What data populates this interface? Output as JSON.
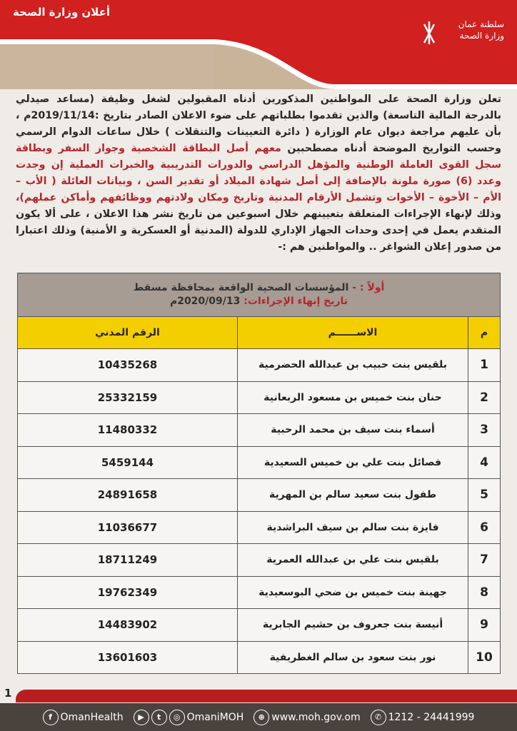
{
  "header": {
    "title": "أعلان وزارة الصحة",
    "logo_text": "سلطنة عمان وزارة الصحة",
    "brand_red": "#c8201f"
  },
  "intro": {
    "part1": "تعلن وزارة الصحة على المواطنين المذكورين أدناه المقبولين لشغل وظيفة (مساعد صيدلي بالدرجة المالية التاسعة) والذين تقدموا بطلباتهم على ضوء الاعلان الصادر بتاريخ :2019/11/14م ، بأن عليهم مراجعة ديوان عام الوزارة ( دائرة التعيينات والتنقلات ) خلال ساعات الدوام الرسمي وحسب التواريخ الموضحة أدناه مصطحبين",
    "part2": "معهم أصل البطاقة الشخصية وجواز السفر وبطاقة سجل القوى العاملة الوطنية والمؤهل الدراسي والدورات التدريبية والخبرات العملية إن وجدت وعدد (6) صورة ملونة بالإضافة إلى أصل شهادة الميلاد أو تقدير السن ، وبيانات العائلة ( الأب – الأم – الأخوة – الأخوات وتشمل الأرقام المدنية وتاريخ ومكان ولادتهم ووظائفهم وأماكن عملهم)،",
    "part3": "وذلك لإنهاء الإجراءات المتعلقة بتعيينهم خلال اسبوعين من تاريخ نشر هذا الاعلان ، على ألا يكون المتقدم يعمل في إحدى وحدات الجهاز الإداري للدولة (المدنية أو العسكرية و الأمنية) وذلك اعتبارا من صدور إعلان الشواغر .. والمواطنين هم :-"
  },
  "table": {
    "section_label": "أولاً : -",
    "section_title": "المؤسسات الصحية الواقعة بمحافظة مسقط",
    "deadline_label": "تاريخ إنهاء الإجراءات:",
    "deadline_value": "2020/09/13م",
    "columns": {
      "index": "م",
      "name": "الاســــــم",
      "civil": "الرقم المدني"
    },
    "rows": [
      {
        "index": "1",
        "name": "بلقيس بنت حبيب بن عبدالله الحضرمية",
        "civil": "10435268"
      },
      {
        "index": "2",
        "name": "حنان بنت خميس بن مسعود الربعانية",
        "civil": "25332159"
      },
      {
        "index": "3",
        "name": "أسماء بنت سيف بن محمد الرحبية",
        "civil": "11480332"
      },
      {
        "index": "4",
        "name": "فصائل بنت علي بن خميس السعيدية",
        "civil": "5459144"
      },
      {
        "index": "5",
        "name": "طفول بنت سعيد سالم بن المهرية",
        "civil": "24891658"
      },
      {
        "index": "6",
        "name": "فايزة بنت سالم بن سيف البراشدية",
        "civil": "11036677"
      },
      {
        "index": "7",
        "name": "بلقيس بنت علي بن عبدالله العمرية",
        "civil": "18711249"
      },
      {
        "index": "8",
        "name": "جهينة بنت خميس بن ضحي البوسعيدية",
        "civil": "19762349"
      },
      {
        "index": "9",
        "name": "أنيسة بنت جعروف بن حشيم الجابرية",
        "civil": "14483902"
      },
      {
        "index": "10",
        "name": "نور بنت سعود بن سالم الغطريفية",
        "civil": "13601603"
      }
    ]
  },
  "footer": {
    "page_number": "1",
    "facebook": "OmanHealth",
    "social": "OmaniMOH",
    "website": "www.moh.gov.om",
    "phone": "1212 - 24441999"
  }
}
